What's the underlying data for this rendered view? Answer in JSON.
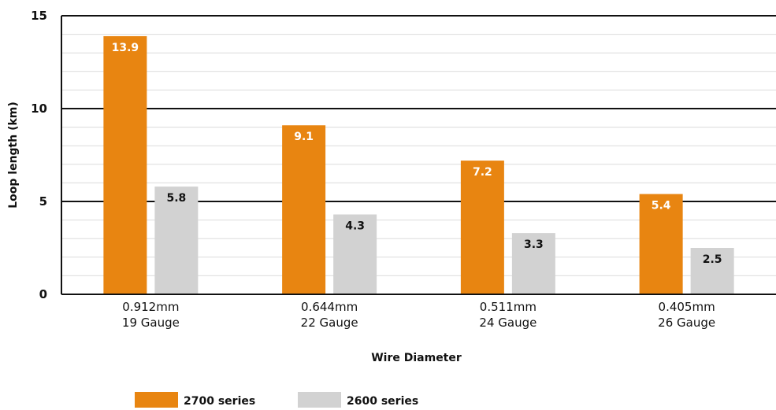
{
  "chart_data": {
    "type": "bar",
    "categories": [
      [
        "0.912mm",
        "19 Gauge"
      ],
      [
        "0.644mm",
        "22 Gauge"
      ],
      [
        "0.511mm",
        "24 Gauge"
      ],
      [
        "0.405mm",
        "26 Gauge"
      ]
    ],
    "series": [
      {
        "name": "2700 series",
        "values": [
          13.9,
          9.1,
          7.2,
          5.4
        ],
        "color": "#e88511",
        "label_color": "#ffffff"
      },
      {
        "name": "2600 series",
        "values": [
          5.8,
          4.3,
          3.3,
          2.5
        ],
        "color": "#d2d2d2",
        "label_color": "#111111"
      }
    ],
    "xlabel": "Wire Diameter",
    "ylabel": "Loop length (km)",
    "ylim": [
      0,
      15
    ],
    "yticks": [
      0,
      5,
      10,
      15
    ],
    "minor_step": 1,
    "grid": true,
    "legend": "bottom"
  }
}
